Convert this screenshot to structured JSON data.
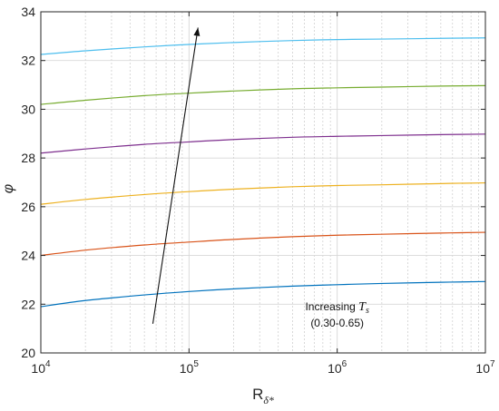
{
  "chart_data": {
    "type": "line",
    "x_scale": "log",
    "xlim": [
      10000,
      10000000
    ],
    "ylim": [
      20,
      34
    ],
    "x_ticks": [
      10000,
      100000,
      1000000,
      10000000
    ],
    "x_tick_labels": [
      {
        "base": "10",
        "exp": "4"
      },
      {
        "base": "10",
        "exp": "5"
      },
      {
        "base": "10",
        "exp": "6"
      },
      {
        "base": "10",
        "exp": "7"
      }
    ],
    "y_ticks": [
      20,
      22,
      24,
      26,
      28,
      30,
      32,
      34
    ],
    "y_tick_labels": [
      "20",
      "22",
      "24",
      "26",
      "28",
      "30",
      "32",
      "34"
    ],
    "xlabel": {
      "main": "R",
      "sub": "δ*"
    },
    "ylabel": "φ",
    "grid": true,
    "x": [
      10000,
      20000,
      50000,
      100000,
      200000,
      500000,
      1000000,
      2000000,
      5000000,
      10000000
    ],
    "series": [
      {
        "color": "#0072BD",
        "values": [
          21.9,
          22.15,
          22.38,
          22.52,
          22.63,
          22.74,
          22.8,
          22.85,
          22.9,
          22.93
        ]
      },
      {
        "color": "#D95319",
        "values": [
          24.0,
          24.22,
          24.43,
          24.55,
          24.66,
          24.77,
          24.83,
          24.87,
          24.92,
          24.95
        ]
      },
      {
        "color": "#EDB120",
        "values": [
          26.1,
          26.3,
          26.5,
          26.62,
          26.72,
          26.82,
          26.87,
          26.9,
          26.95,
          26.98
        ]
      },
      {
        "color": "#7E2F8E",
        "values": [
          28.2,
          28.37,
          28.56,
          28.66,
          28.76,
          28.85,
          28.89,
          28.92,
          28.96,
          28.98
        ]
      },
      {
        "color": "#77AC30",
        "values": [
          30.2,
          30.37,
          30.56,
          30.66,
          30.75,
          30.84,
          30.88,
          30.91,
          30.95,
          30.97
        ]
      },
      {
        "color": "#4DBEEE",
        "values": [
          32.25,
          32.4,
          32.56,
          32.66,
          32.74,
          32.82,
          32.86,
          32.88,
          32.91,
          32.93
        ]
      }
    ],
    "arrow": {
      "from": [
        57000,
        21.2
      ],
      "to": [
        115000,
        33.35
      ]
    },
    "annotation": {
      "line1_prefix": "Increasing ",
      "line1_var": "T",
      "line1_sub": "s",
      "line2": "(0.30-0.65)",
      "anchor": [
        1000000,
        22.2
      ]
    }
  }
}
